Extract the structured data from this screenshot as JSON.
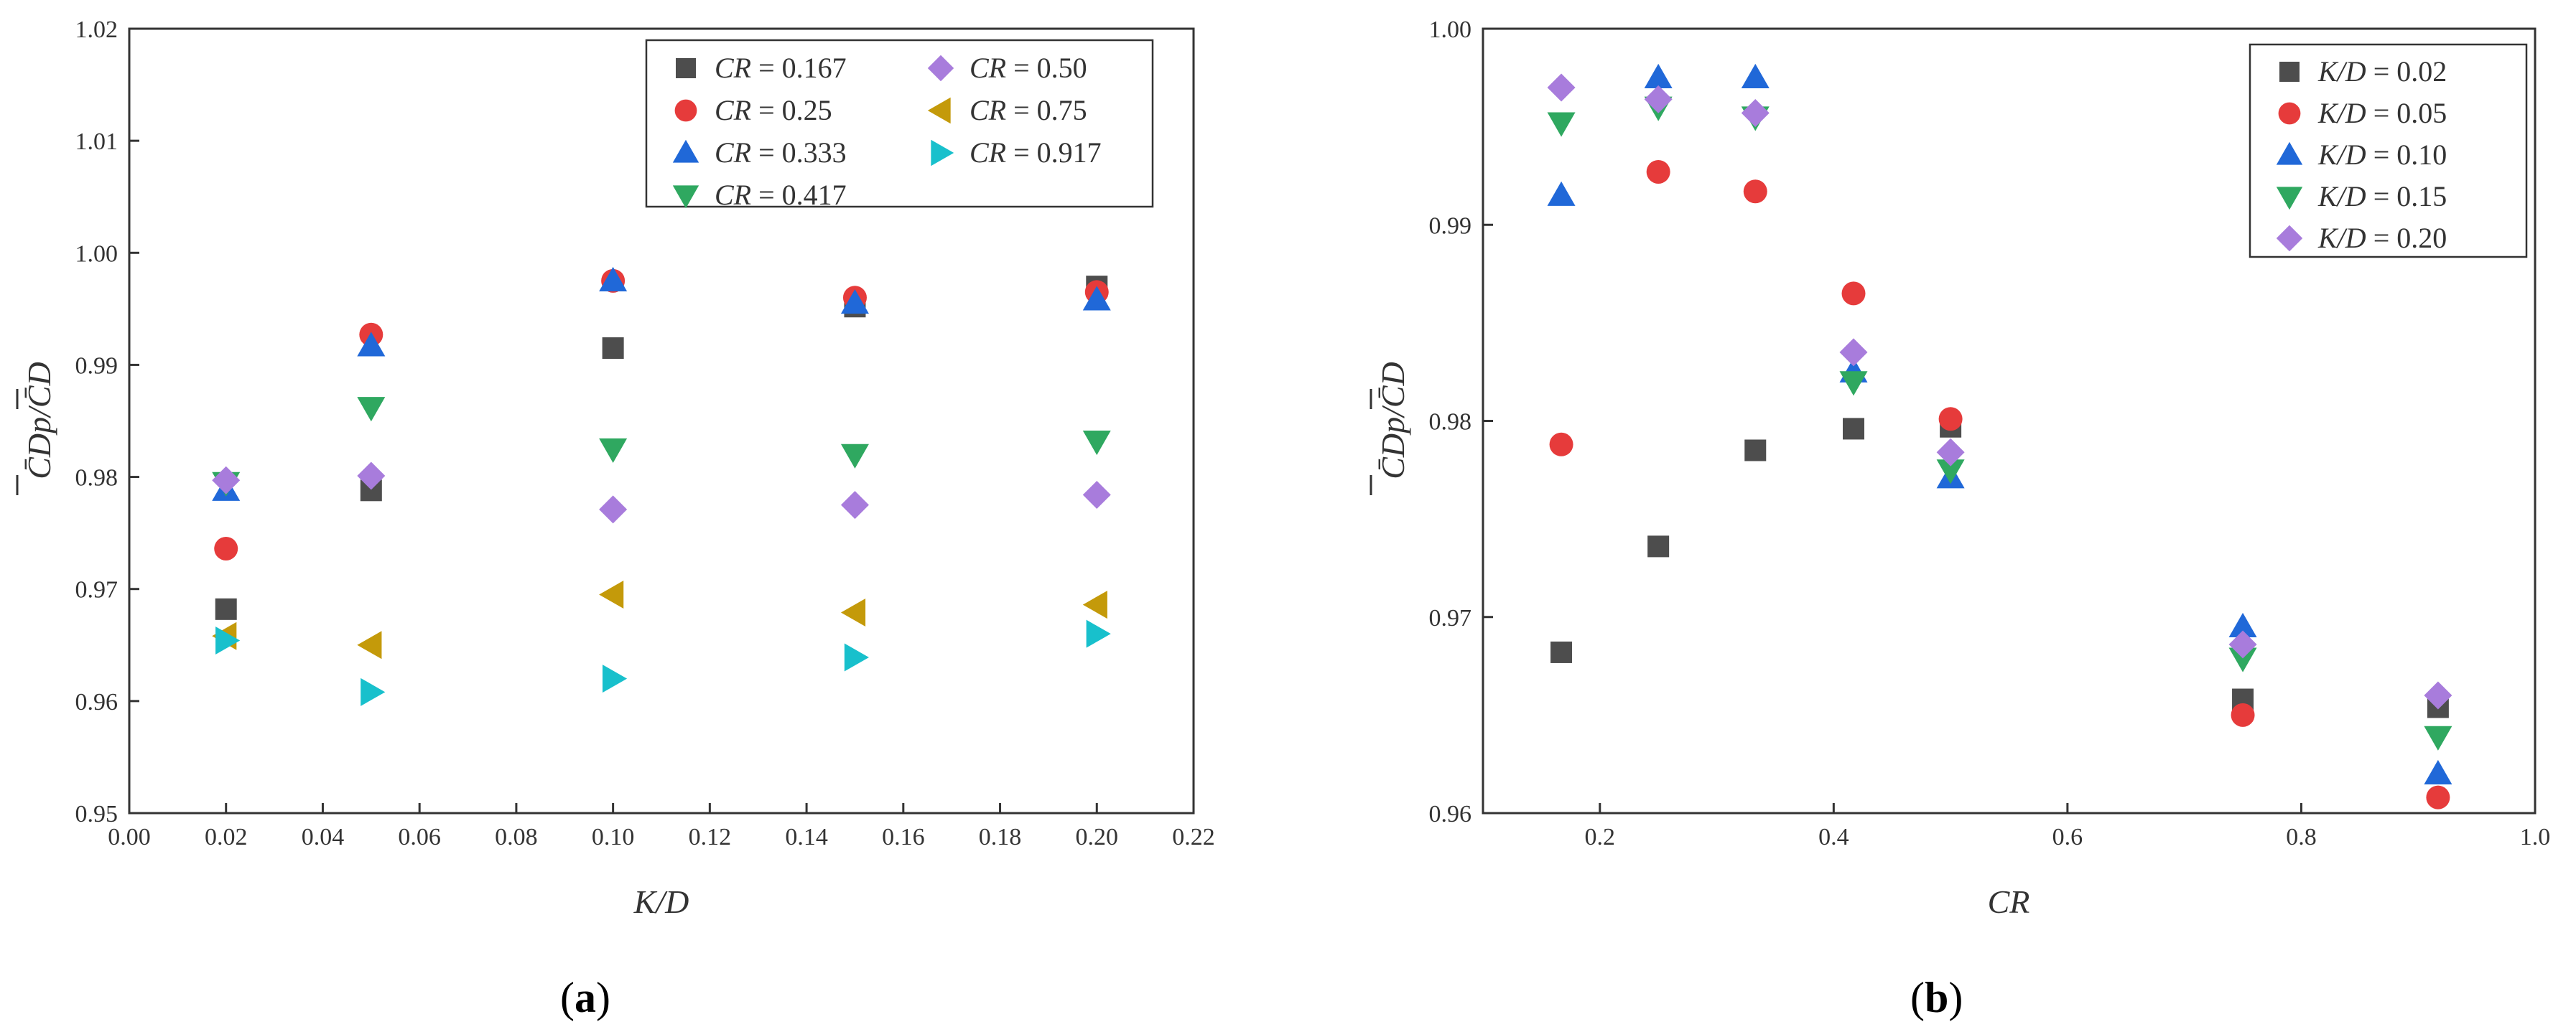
{
  "colors": {
    "square": "#4d4d4d",
    "circle": "#e63b3b",
    "triangle_up": "#2068d8",
    "triangle_down": "#2fa860",
    "diamond": "#a87cdc",
    "triangle_left": "#c49a0a",
    "triangle_right": "#18c0cc"
  },
  "chart_data": [
    {
      "type": "scatter",
      "panel_label": {
        "open": "(",
        "letter": "a",
        "close": ")"
      },
      "xlabel": "K/D",
      "ylabel": "C̄Dp/C̄D",
      "xlim": [
        0.0,
        0.22
      ],
      "ylim": [
        0.95,
        1.02
      ],
      "xticks": [
        "0.00",
        "0.02",
        "0.04",
        "0.06",
        "0.08",
        "0.10",
        "0.12",
        "0.14",
        "0.16",
        "0.18",
        "0.20",
        "0.22"
      ],
      "yticks": [
        "0.95",
        "0.96",
        "0.97",
        "0.98",
        "0.99",
        "1.00",
        "1.01",
        "1.02"
      ],
      "legend_position": "top-right",
      "series": [
        {
          "name": "CR = 0.167",
          "var": "CR",
          "val": "0.167",
          "marker": "square",
          "x": [
            0.02,
            0.05,
            0.1,
            0.15,
            0.2
          ],
          "y": [
            0.9682,
            0.9788,
            0.9915,
            0.9952,
            0.997
          ]
        },
        {
          "name": "CR = 0.25",
          "var": "CR",
          "val": "0.25",
          "marker": "circle",
          "x": [
            0.02,
            0.05,
            0.1,
            0.15,
            0.2
          ],
          "y": [
            0.9736,
            0.9927,
            0.9975,
            0.996,
            0.9965
          ]
        },
        {
          "name": "CR = 0.333",
          "var": "CR",
          "val": "0.333",
          "marker": "triangle_up",
          "x": [
            0.02,
            0.05,
            0.1,
            0.15,
            0.2
          ],
          "y": [
            0.9788,
            0.9917,
            0.9975,
            0.9955,
            0.9958
          ]
        },
        {
          "name": "CR = 0.417",
          "var": "CR",
          "val": "0.417",
          "marker": "triangle_down",
          "x": [
            0.02,
            0.05,
            0.1,
            0.15,
            0.2
          ],
          "y": [
            0.9795,
            0.9862,
            0.9825,
            0.982,
            0.9832
          ]
        },
        {
          "name": "CR = 0.50",
          "var": "CR",
          "val": "0.50",
          "marker": "diamond",
          "x": [
            0.02,
            0.05,
            0.1,
            0.15,
            0.2
          ],
          "y": [
            0.9797,
            0.9801,
            0.9771,
            0.9775,
            0.9784
          ]
        },
        {
          "name": "CR = 0.75",
          "var": "CR",
          "val": "0.75",
          "marker": "triangle_left",
          "x": [
            0.02,
            0.05,
            0.1,
            0.15,
            0.2
          ],
          "y": [
            0.9658,
            0.965,
            0.9695,
            0.9679,
            0.9686
          ]
        },
        {
          "name": "CR = 0.917",
          "var": "CR",
          "val": "0.917",
          "marker": "triangle_right",
          "x": [
            0.02,
            0.05,
            0.1,
            0.15,
            0.2
          ],
          "y": [
            0.9654,
            0.9608,
            0.962,
            0.9639,
            0.966
          ]
        }
      ]
    },
    {
      "type": "scatter",
      "panel_label": {
        "open": "(",
        "letter": "b",
        "close": ")"
      },
      "xlabel": "CR",
      "ylabel": "C̄Dp/C̄D",
      "xlim": [
        0.1,
        1.0
      ],
      "ylim": [
        0.96,
        1.0
      ],
      "xticks": [
        "0.2",
        "0.4",
        "0.6",
        "0.8",
        "1.0"
      ],
      "yticks": [
        "0.96",
        "0.97",
        "0.98",
        "0.99",
        "1.00"
      ],
      "legend_position": "top-right",
      "series": [
        {
          "name": "K/D = 0.02",
          "var": "K/D",
          "val": "0.02",
          "marker": "square",
          "x": [
            0.167,
            0.25,
            0.333,
            0.417,
            0.5,
            0.75,
            0.917
          ],
          "y": [
            0.9682,
            0.9736,
            0.9785,
            0.9796,
            0.9797,
            0.9658,
            0.9654
          ]
        },
        {
          "name": "K/D = 0.05",
          "var": "K/D",
          "val": "0.05",
          "marker": "circle",
          "x": [
            0.167,
            0.25,
            0.333,
            0.417,
            0.5,
            0.75,
            0.917
          ],
          "y": [
            0.9788,
            0.9927,
            0.9917,
            0.9865,
            0.9801,
            0.965,
            0.9608
          ]
        },
        {
          "name": "K/D = 0.10",
          "var": "K/D",
          "val": "0.10",
          "marker": "triangle_up",
          "x": [
            0.167,
            0.25,
            0.333,
            0.417,
            0.5,
            0.75,
            0.917
          ],
          "y": [
            0.9915,
            0.9975,
            0.9975,
            0.9825,
            0.9771,
            0.9695,
            0.962
          ]
        },
        {
          "name": "K/D = 0.15",
          "var": "K/D",
          "val": "0.15",
          "marker": "triangle_down",
          "x": [
            0.167,
            0.25,
            0.333,
            0.417,
            0.5,
            0.75,
            0.917
          ],
          "y": [
            0.9952,
            0.996,
            0.9955,
            0.982,
            0.9775,
            0.9679,
            0.9639
          ]
        },
        {
          "name": "K/D = 0.20",
          "var": "K/D",
          "val": "0.20",
          "marker": "diamond",
          "x": [
            0.167,
            0.25,
            0.333,
            0.417,
            0.5,
            0.75,
            0.917
          ],
          "y": [
            0.997,
            0.9964,
            0.9957,
            0.9835,
            0.9784,
            0.9686,
            0.966
          ]
        }
      ]
    }
  ]
}
